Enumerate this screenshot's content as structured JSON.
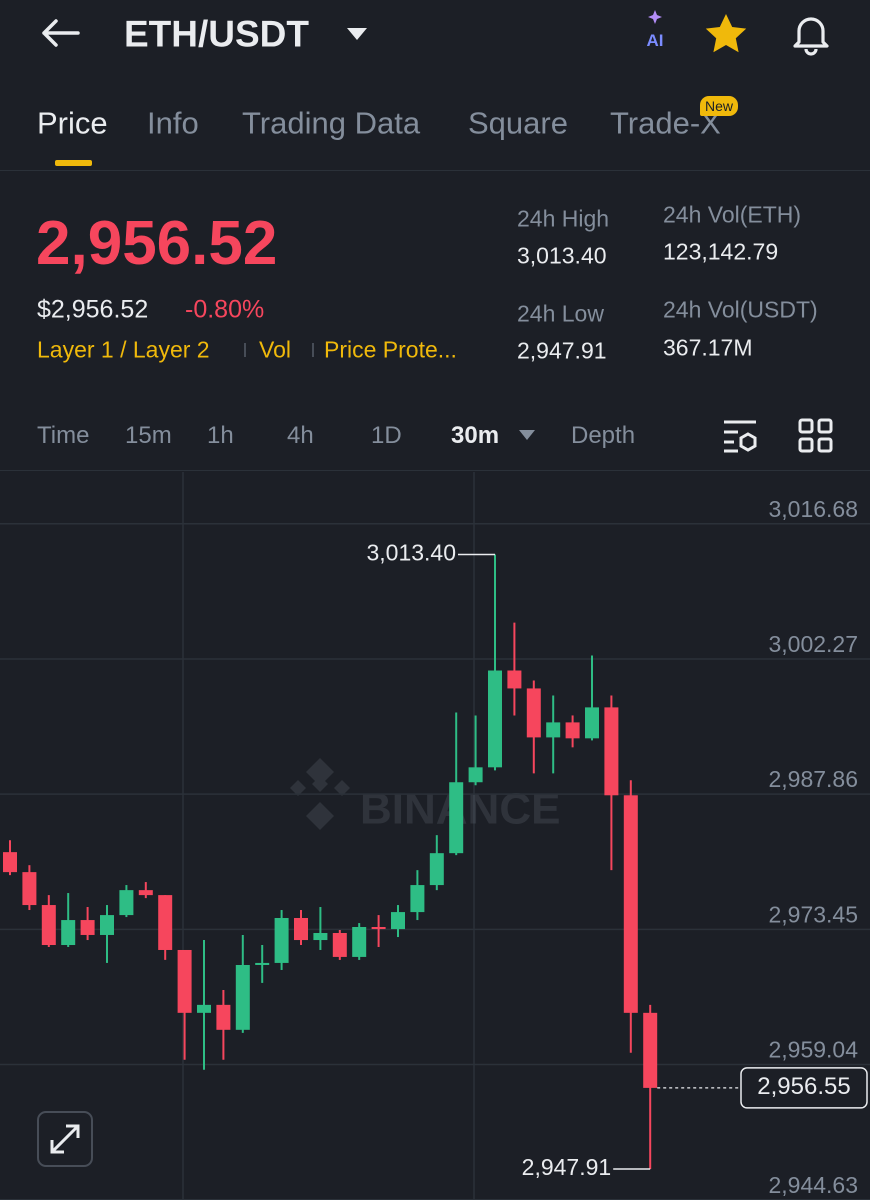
{
  "header": {
    "title": "ETH/USDT",
    "ai": "AI"
  },
  "tabs": [
    "Price",
    "Info",
    "Trading Data",
    "Square",
    "Trade-X"
  ],
  "tab_badge": "New",
  "ticker": {
    "price": "2,956.52",
    "usd_price": "$2,956.52",
    "change": "-0.80%",
    "tags": [
      "Layer 1 / Layer 2",
      "Vol",
      "Price Prote..."
    ],
    "stats": [
      {
        "label": "24h High",
        "value": "3,013.40"
      },
      {
        "label": "24h Low",
        "value": "2,947.91"
      },
      {
        "label": "24h Vol(ETH)",
        "value": "123,142.79"
      },
      {
        "label": "24h Vol(USDT)",
        "value": "367.17M"
      }
    ]
  },
  "intervals": [
    "Time",
    "15m",
    "1h",
    "4h",
    "1D",
    "30m",
    "Depth"
  ],
  "chart_data": {
    "type": "candlestick",
    "watermark": "BINANCE",
    "up_color": "#2ebd85",
    "down_color": "#f6465d",
    "grid": true,
    "ylim": [
      2944.6,
      3022.2
    ],
    "yticks": [
      {
        "value": 3016.68,
        "label": "3,016.68"
      },
      {
        "value": 3002.27,
        "label": "3,002.27"
      },
      {
        "value": 2987.86,
        "label": "2,987.86"
      },
      {
        "value": 2973.45,
        "label": "2,973.45"
      },
      {
        "value": 2959.04,
        "label": "2,959.04"
      },
      {
        "value": 2944.63,
        "label": "2,944.63"
      }
    ],
    "open": [
      2981.68,
      2979.55,
      2976.04,
      2971.78,
      2974.44,
      2972.85,
      2974.97,
      2977.63,
      2977.1,
      2971.25,
      2964.55,
      2965.4,
      2962.74,
      2969.65,
      2969.87,
      2974.66,
      2972.31,
      2973.06,
      2970.51,
      2973.7,
      2973.48,
      2975.29,
      2978.17,
      2981.57,
      2989.13,
      2990.72,
      3001.04,
      2999.13,
      2993.91,
      2995.51,
      2993.81,
      2997.11,
      2987.74,
      2964.55
    ],
    "high": [
      2982.95,
      2980.29,
      2977.1,
      2977.32,
      2975.83,
      2976.04,
      2978.17,
      2978.49,
      2977.1,
      2971.25,
      2972.31,
      2966.99,
      2972.85,
      2971.78,
      2975.51,
      2975.51,
      2975.83,
      2973.38,
      2974.12,
      2974.97,
      2976.04,
      2979.76,
      2983.49,
      2996.57,
      2996.25,
      3013.4,
      3006.15,
      2999.98,
      2998.38,
      2996.25,
      3002.64,
      2998.38,
      2989.34,
      2965.4
    ],
    "low": [
      2979.23,
      2975.51,
      2971.57,
      2971.57,
      2972.31,
      2969.87,
      2974.76,
      2976.78,
      2970.19,
      2959.55,
      2958.48,
      2959.55,
      2962.42,
      2967.74,
      2969.12,
      2971.78,
      2971.25,
      2970.19,
      2970.19,
      2971.57,
      2972.63,
      2974.44,
      2977.63,
      2981.36,
      2988.81,
      2990.4,
      2996.25,
      2990.08,
      2990.08,
      2992.85,
      2993.59,
      2979.76,
      2960.29,
      2947.91
    ],
    "close": [
      2979.55,
      2976.04,
      2971.78,
      2974.44,
      2972.85,
      2974.97,
      2977.63,
      2977.1,
      2971.25,
      2964.55,
      2965.4,
      2962.74,
      2969.65,
      2969.87,
      2974.66,
      2972.31,
      2973.06,
      2970.51,
      2973.7,
      2973.48,
      2975.29,
      2978.17,
      2981.57,
      2989.13,
      2990.72,
      3001.04,
      2999.13,
      2993.91,
      2995.51,
      2993.81,
      2997.11,
      2987.74,
      2964.55,
      2956.55
    ],
    "annotations": [
      {
        "value": 3013.4,
        "label": "3,013.40"
      },
      {
        "value": 2947.91,
        "label": "2,947.91"
      },
      {
        "value": 2956.55,
        "label": "2,956.55"
      }
    ]
  }
}
